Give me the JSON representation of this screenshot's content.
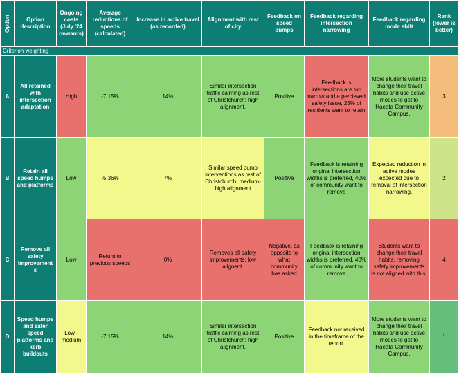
{
  "headers": {
    "option": "Option",
    "description": "Option description",
    "ongoing_costs": "Ongoing costs (July '24 onwards)",
    "avg_speed_reduction": "Average reductions of speeds (calculated)",
    "active_travel": "Increase in active travel (as recorded)",
    "alignment": "Alignment with rest of city",
    "speed_bumps": "Feedback on speed bumps",
    "intersection": "Feedback regarding intersection narrowing",
    "mode_shift": "Feedback regarding mode shift",
    "rank": "Rank (lower is better)"
  },
  "weighting_label": "Criterion weighting",
  "rows": [
    {
      "letter": "A",
      "description": "All retained with intersection adaptation",
      "ongoing_costs": "High",
      "avg_speed_reduction": "-7.15%",
      "active_travel": "14%",
      "alignment": "Similar intersection traffic calming as rest of Christchurch; high alignment.",
      "speed_bumps": "Positive",
      "intersection": "Feedback is intersections are too narrow and a percieved safety issue, 25% of residents want to retain",
      "mode_shift": "More students want to change their travel habits and use active modes to get to Haeata Community Campus.",
      "rank": "3"
    },
    {
      "letter": "B",
      "description": "Retain all speed humps and platforms",
      "ongoing_costs": "Low",
      "avg_speed_reduction": "-5.36%",
      "active_travel": "7%",
      "alignment": "Similar speed bump interventions as rest of Christchurch; medium-high alignment",
      "speed_bumps": "Positive",
      "intersection": "Feedback is retaining original intersection widths is preferred, 40% of community want to remove",
      "mode_shift": "Expected reduction in active modes expected due to removal of intersection narrowing.",
      "rank": "2"
    },
    {
      "letter": "C",
      "description": "Remove all safety improvements",
      "ongoing_costs": "Low",
      "avg_speed_reduction": "Return to previous speeds",
      "active_travel": "0%",
      "alignment": "Removes all safety improvements; low alignent.",
      "speed_bumps": "Negative, as opposite to what community has asked",
      "intersection": "Feedback is retaining original intersection widths is preferred, 40% of community want to remove",
      "mode_shift": "Students want to change their travel habits, removing safety improvements is not aligned with this.",
      "rank": "4"
    },
    {
      "letter": "D",
      "description": "Speed humps and safer speed platforms and kerb buildouts",
      "ongoing_costs": "Low - medium",
      "avg_speed_reduction": "-7.15%",
      "active_travel": "14%",
      "alignment": "Similar intersection traffic calming as rest of Christchurch; high alignment.",
      "speed_bumps": "Positive",
      "intersection": "Feedback not received in the timeframe of the report.",
      "mode_shift": "More students want to change their travel habits and use active modes to get to Haeata Community Campus.",
      "rank": "1"
    }
  ],
  "colors": {
    "header_teal": "#0e7d73",
    "red": "#e8706d",
    "yellow": "#f3f88c",
    "light_green": "#8dd477",
    "pale_green": "#cfe48a",
    "orange": "#f4bd7b",
    "medium_green": "#63bf7b"
  }
}
